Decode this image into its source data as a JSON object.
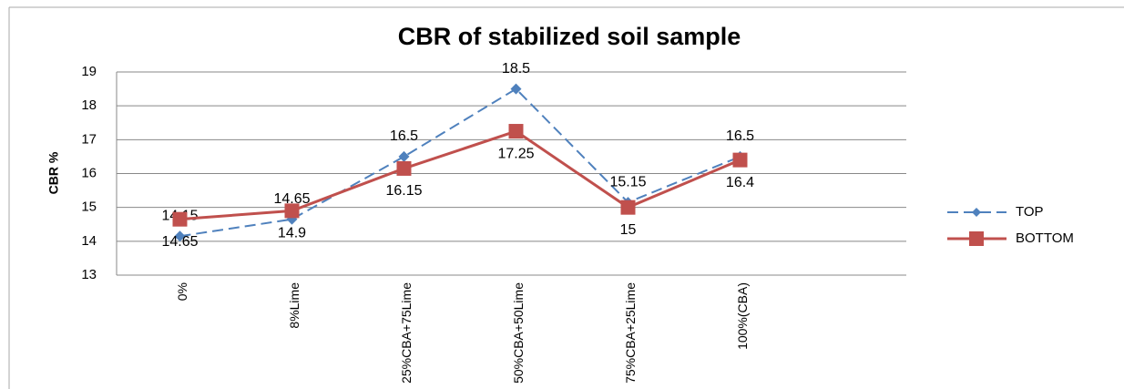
{
  "chart_data": {
    "type": "line",
    "title": "CBR of stabilized soil sample",
    "ylabel": "CBR %",
    "categories": [
      "0%",
      "8%Lime",
      "25%CBA+75Lime",
      "50%CBA+50Lime",
      "75%CBA+25Lime",
      "100%(CBA)"
    ],
    "series": [
      {
        "name": "TOP",
        "color": "#4f81bd",
        "values": [
          14.15,
          14.65,
          16.5,
          18.5,
          15.15,
          16.5
        ]
      },
      {
        "name": "BOTTOM",
        "color": "#c0504d",
        "values": [
          14.65,
          14.9,
          16.15,
          17.25,
          15,
          16.4
        ]
      }
    ],
    "ylim": [
      13,
      19
    ],
    "yticks": [
      13,
      14,
      15,
      16,
      17,
      18,
      19
    ],
    "grid": true,
    "legend": "right"
  }
}
